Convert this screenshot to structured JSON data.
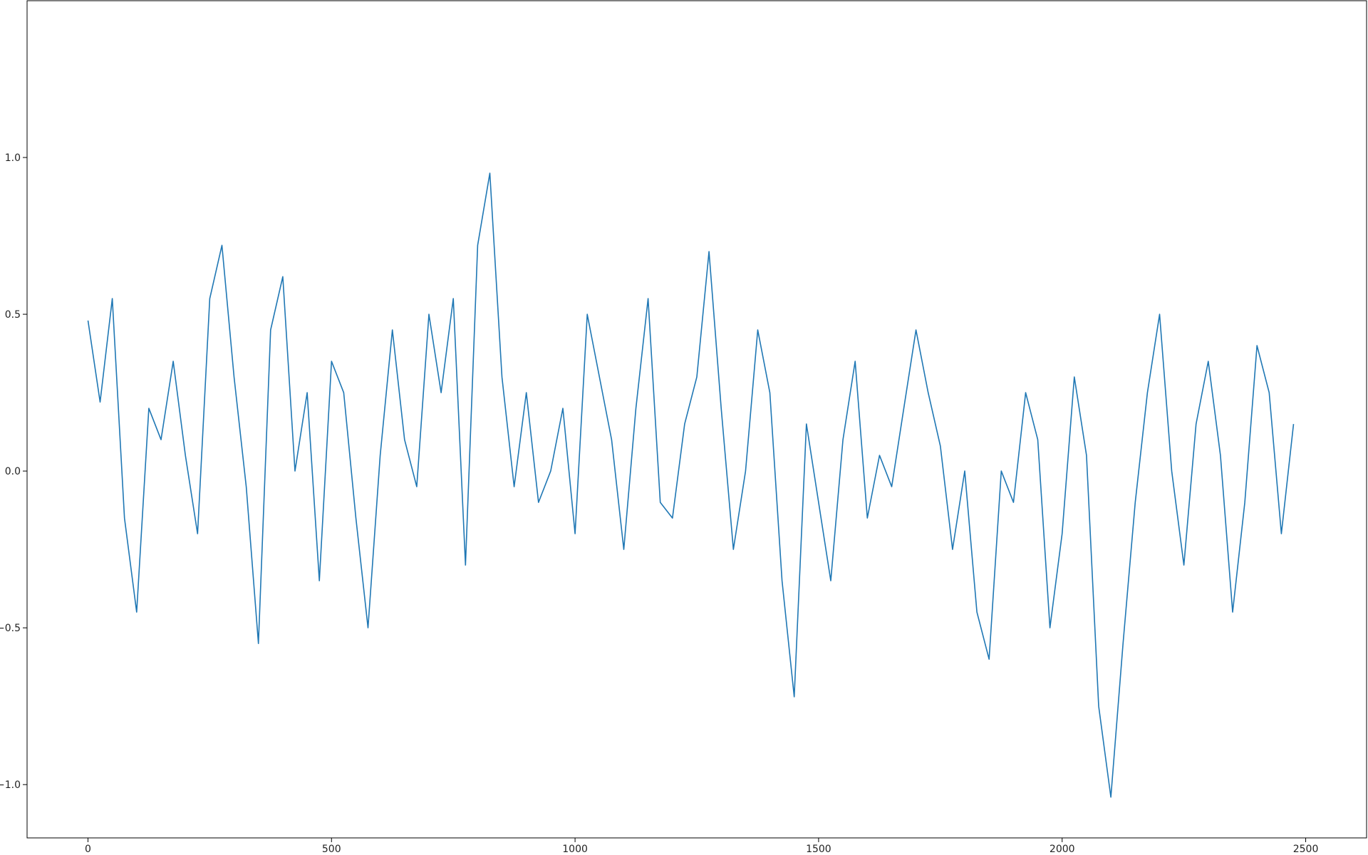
{
  "chart_data": {
    "type": "line",
    "title": "",
    "xlabel": "",
    "ylabel": "",
    "xlim": [
      -125,
      2625
    ],
    "ylim": [
      -1.17,
      1.5
    ],
    "xticks": [
      0,
      500,
      1000,
      1500,
      2000,
      2500
    ],
    "xtick_labels": [
      "0",
      "500",
      "1000",
      "1500",
      "2000",
      "2500"
    ],
    "yticks": [
      -1.0,
      -0.5,
      0.0,
      0.5,
      1.0
    ],
    "ytick_labels": [
      "−1.0",
      "−0.5",
      "0.0",
      "0.5",
      "1.0"
    ],
    "grid": false,
    "legend": "none",
    "line_color": "#1f77b4",
    "series": [
      {
        "x_start": 0,
        "x_step": 25,
        "values": [
          0.48,
          0.22,
          0.55,
          -0.15,
          -0.45,
          0.2,
          0.1,
          0.35,
          0.05,
          -0.2,
          0.55,
          0.72,
          0.3,
          -0.05,
          -0.55,
          0.45,
          0.62,
          0.0,
          0.25,
          -0.35,
          0.35,
          0.25,
          -0.15,
          -0.5,
          0.05,
          0.45,
          0.1,
          -0.05,
          0.5,
          0.25,
          0.55,
          -0.3,
          0.72,
          0.95,
          0.3,
          -0.05,
          0.25,
          -0.1,
          0.0,
          0.2,
          -0.2,
          0.5,
          0.3,
          0.1,
          -0.25,
          0.2,
          0.55,
          -0.1,
          -0.15,
          0.15,
          0.3,
          0.7,
          0.2,
          -0.25,
          0.0,
          0.45,
          0.25,
          -0.35,
          -0.72,
          0.15,
          -0.1,
          -0.35,
          0.1,
          0.35,
          -0.15,
          0.05,
          -0.05,
          0.2,
          0.45,
          0.25,
          0.08,
          -0.25,
          0.0,
          -0.45,
          -0.6,
          0.0,
          -0.1,
          0.25,
          0.1,
          -0.5,
          -0.2,
          0.3,
          0.05,
          -0.75,
          -1.04,
          -0.55,
          -0.1,
          0.25,
          0.5,
          0.0,
          -0.3,
          0.15,
          0.35,
          0.05,
          -0.45,
          -0.1,
          0.4,
          0.25,
          -0.2,
          0.15
        ]
      }
    ]
  }
}
